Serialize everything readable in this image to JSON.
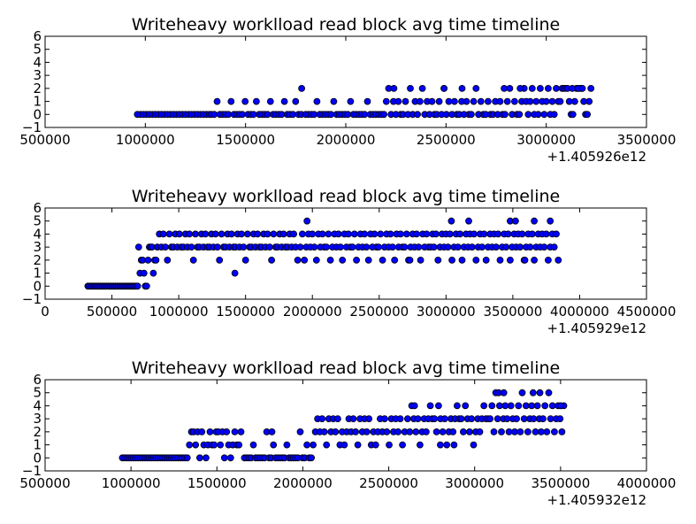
{
  "colors": {
    "marker_fill": "#0000ff",
    "marker_edge": "#000000",
    "background": "#ffffff"
  },
  "chart_data": [
    {
      "type": "scatter",
      "title": "Writeheavy worklload read block avg time timeline",
      "xlim": [
        500000,
        3500000
      ],
      "ylim": [
        -1,
        6
      ],
      "xticks": [
        "500000",
        "1000000",
        "1500000",
        "2000000",
        "2500000",
        "3000000",
        "3500000"
      ],
      "xtick_values": [
        500000,
        1000000,
        1500000,
        2000000,
        2500000,
        3000000,
        3500000
      ],
      "yticks": [
        "−1",
        "0",
        "1",
        "2",
        "3",
        "4",
        "5",
        "6"
      ],
      "ytick_values": [
        -1,
        0,
        1,
        2,
        3,
        4,
        5,
        6
      ],
      "x_offset_label": "+1.405926e12",
      "grid": false,
      "segments": [
        {
          "x0": 960000,
          "x1": 1320000,
          "step": 15000,
          "values": [
            0
          ]
        },
        {
          "x0": 1330000,
          "x1": 1790000,
          "step": 14000,
          "values": [
            0,
            0,
            1,
            0,
            0,
            0,
            0,
            1,
            0,
            0,
            0,
            0,
            1,
            0
          ]
        },
        {
          "x0": 1800000,
          "x1": 2180000,
          "step": 14000,
          "values": [
            0,
            0,
            0,
            0,
            1,
            0,
            0,
            0,
            0,
            0,
            1,
            0
          ]
        },
        {
          "x0": 2190000,
          "x1": 2520000,
          "step": 12000,
          "values": [
            0,
            1,
            2,
            0,
            1,
            0,
            1,
            0,
            0,
            1,
            0,
            2,
            0,
            1
          ]
        },
        {
          "x0": 2530000,
          "x1": 2880000,
          "step": 12000,
          "values": [
            0,
            1,
            0,
            0,
            1,
            0,
            1,
            0,
            0,
            1,
            2,
            0,
            1,
            0
          ]
        },
        {
          "x0": 2890000,
          "x1": 3060000,
          "step": 10000,
          "values": [
            2,
            1,
            0,
            1,
            2,
            0,
            1,
            0
          ]
        },
        {
          "x0": 3070000,
          "x1": 3230000,
          "step": 9000,
          "values": [
            1,
            2,
            2,
            2,
            2,
            1,
            0,
            0
          ]
        }
      ],
      "extra_points": [
        [
          1780000,
          2
        ],
        [
          2240000,
          2
        ],
        [
          2490000,
          2
        ],
        [
          2580000,
          2
        ],
        [
          2790000,
          2
        ],
        [
          2870000,
          2
        ],
        [
          3130000,
          2
        ],
        [
          3160000,
          2
        ],
        [
          3180000,
          2
        ]
      ]
    },
    {
      "type": "scatter",
      "title": "Writeheavy worklload read block avg time timeline",
      "xlim": [
        0,
        4500000
      ],
      "ylim": [
        -1,
        6
      ],
      "xticks": [
        "0",
        "500000",
        "1000000",
        "1500000",
        "2000000",
        "2500000",
        "3000000",
        "3500000",
        "4000000",
        "4500000"
      ],
      "xtick_values": [
        0,
        500000,
        1000000,
        1500000,
        2000000,
        2500000,
        3000000,
        3500000,
        4000000,
        4500000
      ],
      "yticks": [
        "−1",
        "0",
        "1",
        "2",
        "3",
        "4",
        "5",
        "6"
      ],
      "ytick_values": [
        -1,
        0,
        1,
        2,
        3,
        4,
        5,
        6
      ],
      "x_offset_label": "+1.405929e12",
      "grid": false,
      "segments": [
        {
          "x0": 320000,
          "x1": 700000,
          "step": 12000,
          "values": [
            0
          ]
        },
        {
          "x0": 700000,
          "x1": 830000,
          "step": 10000,
          "values": [
            3,
            1,
            2,
            2,
            1,
            0,
            0,
            2,
            3,
            3
          ]
        },
        {
          "x0": 840000,
          "x1": 1900000,
          "step": 15000,
          "values": [
            3,
            4,
            3,
            4,
            3,
            2,
            4,
            3,
            3,
            4,
            3,
            4,
            3
          ]
        },
        {
          "x0": 1910000,
          "x1": 2900000,
          "step": 15000,
          "values": [
            3,
            4,
            2,
            3,
            4,
            3,
            4,
            3,
            2,
            4,
            3,
            4,
            3
          ]
        },
        {
          "x0": 2910000,
          "x1": 3850000,
          "step": 15000,
          "values": [
            3,
            4,
            2,
            3,
            4,
            3,
            4,
            3,
            4,
            2,
            3,
            4
          ]
        }
      ],
      "extra_points": [
        [
          1420000,
          1
        ],
        [
          1960000,
          5
        ],
        [
          3040000,
          5
        ],
        [
          3170000,
          5
        ],
        [
          3480000,
          5
        ],
        [
          3520000,
          5
        ],
        [
          3660000,
          5
        ],
        [
          3780000,
          5
        ],
        [
          3590000,
          2
        ],
        [
          2730000,
          2
        ]
      ]
    },
    {
      "type": "scatter",
      "title": "Writeheavy worklload read block avg time timeline",
      "xlim": [
        500000,
        4000000
      ],
      "ylim": [
        -1,
        6
      ],
      "xticks": [
        "500000",
        "1000000",
        "1500000",
        "2000000",
        "2500000",
        "3000000",
        "3500000",
        "4000000"
      ],
      "xtick_values": [
        500000,
        1000000,
        1500000,
        2000000,
        2500000,
        3000000,
        3500000,
        4000000
      ],
      "yticks": [
        "−1",
        "0",
        "1",
        "2",
        "3",
        "4",
        "5",
        "6"
      ],
      "ytick_values": [
        -1,
        0,
        1,
        2,
        3,
        4,
        5,
        6
      ],
      "x_offset_label": "+1.405932e12",
      "grid": false,
      "segments": [
        {
          "x0": 950000,
          "x1": 1330000,
          "step": 13000,
          "values": [
            0
          ]
        },
        {
          "x0": 1340000,
          "x1": 1650000,
          "step": 12000,
          "values": [
            1,
            2,
            2,
            1,
            2,
            0,
            2,
            1,
            0,
            1,
            2,
            1
          ]
        },
        {
          "x0": 1660000,
          "x1": 2050000,
          "step": 13000,
          "values": [
            0,
            0,
            0,
            0,
            1,
            0,
            0,
            0,
            0,
            0,
            2,
            0,
            0,
            1,
            0
          ]
        },
        {
          "x0": 2060000,
          "x1": 2600000,
          "step": 13000,
          "values": [
            1,
            2,
            3,
            2,
            3,
            2,
            1,
            3,
            2,
            3,
            2,
            3,
            1,
            2
          ]
        },
        {
          "x0": 2610000,
          "x1": 3080000,
          "step": 12000,
          "values": [
            3,
            2,
            4,
            3,
            2,
            3,
            1,
            2,
            3,
            2,
            3,
            4,
            3
          ]
        },
        {
          "x0": 3090000,
          "x1": 3520000,
          "step": 11000,
          "values": [
            3,
            4,
            2,
            5,
            3,
            4,
            2,
            3,
            4,
            3,
            2,
            4,
            3,
            2
          ]
        }
      ],
      "extra_points": [
        [
          3140000,
          5
        ],
        [
          3170000,
          5
        ],
        [
          3340000,
          5
        ],
        [
          3380000,
          5
        ],
        [
          2650000,
          4
        ],
        [
          3500000,
          4
        ],
        [
          1820000,
          2
        ],
        [
          2800000,
          1
        ],
        [
          2880000,
          1
        ]
      ]
    }
  ]
}
